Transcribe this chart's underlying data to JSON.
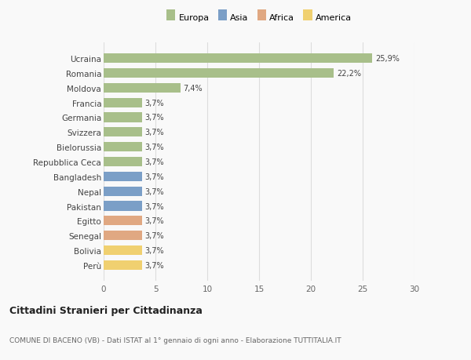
{
  "countries": [
    "Ucraina",
    "Romania",
    "Moldova",
    "Francia",
    "Germania",
    "Svizzera",
    "Bielorussia",
    "Repubblica Ceca",
    "Bangladesh",
    "Nepal",
    "Pakistan",
    "Egitto",
    "Senegal",
    "Bolivia",
    "Perù"
  ],
  "values": [
    25.9,
    22.2,
    7.4,
    3.7,
    3.7,
    3.7,
    3.7,
    3.7,
    3.7,
    3.7,
    3.7,
    3.7,
    3.7,
    3.7,
    3.7
  ],
  "labels": [
    "25,9%",
    "22,2%",
    "7,4%",
    "3,7%",
    "3,7%",
    "3,7%",
    "3,7%",
    "3,7%",
    "3,7%",
    "3,7%",
    "3,7%",
    "3,7%",
    "3,7%",
    "3,7%",
    "3,7%"
  ],
  "colors": [
    "#a8bf8a",
    "#a8bf8a",
    "#a8bf8a",
    "#a8bf8a",
    "#a8bf8a",
    "#a8bf8a",
    "#a8bf8a",
    "#a8bf8a",
    "#7b9fc7",
    "#7b9fc7",
    "#7b9fc7",
    "#e0a882",
    "#e0a882",
    "#f0d070",
    "#f0d070"
  ],
  "legend_labels": [
    "Europa",
    "Asia",
    "Africa",
    "America"
  ],
  "legend_colors": [
    "#a8bf8a",
    "#7b9fc7",
    "#e0a882",
    "#f0d070"
  ],
  "xlim": [
    0,
    30
  ],
  "xticks": [
    0,
    5,
    10,
    15,
    20,
    25,
    30
  ],
  "title": "Cittadini Stranieri per Cittadinanza",
  "subtitle": "COMUNE DI BACENO (VB) - Dati ISTAT al 1° gennaio di ogni anno - Elaborazione TUTTITALIA.IT",
  "bg_color": "#f9f9f9",
  "grid_color": "#dddddd",
  "bar_height": 0.65
}
